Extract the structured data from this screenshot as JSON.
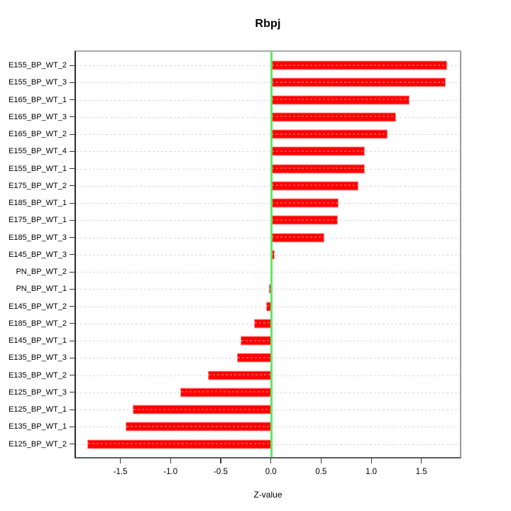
{
  "title": "Rbpj",
  "x_axis": {
    "label": "Z-value",
    "tick_values": [
      -1.5,
      -1.0,
      -0.5,
      0.0,
      0.5,
      1.0,
      1.5
    ],
    "tick_labels": [
      "-1.5",
      "-1.0",
      "-0.5",
      "0.0",
      "0.5",
      "1.0",
      "1.5"
    ]
  },
  "colors": {
    "bar_fill": "#ff0000",
    "bar_border": "#ff9595",
    "zero_line_green": "#63e763",
    "gridline_grey": "#d9d9d9"
  },
  "chart_data": {
    "type": "bar",
    "orientation": "horizontal",
    "title": "Rbpj",
    "xlabel": "Z-value",
    "ylabel": "",
    "xlim": [
      -1.96,
      1.89
    ],
    "grid": "dashed-horizontal-per-category",
    "zero_reference_line": 0.0,
    "legend": "none",
    "categories": [
      "E155_BP_WT_2",
      "E155_BP_WT_3",
      "E165_BP_WT_1",
      "E165_BP_WT_3",
      "E165_BP_WT_2",
      "E155_BP_WT_4",
      "E155_BP_WT_1",
      "E175_BP_WT_2",
      "E185_BP_WT_1",
      "E175_BP_WT_1",
      "E185_BP_WT_3",
      "E145_BP_WT_3",
      "PN_BP_WT_2",
      "PN_BP_WT_1",
      "E145_BP_WT_2",
      "E185_BP_WT_2",
      "E145_BP_WT_1",
      "E135_BP_WT_3",
      "E135_BP_WT_2",
      "E125_BP_WT_3",
      "E125_BP_WT_1",
      "E135_BP_WT_1",
      "E125_BP_WT_2"
    ],
    "values": [
      1.74,
      1.73,
      1.37,
      1.23,
      1.15,
      0.92,
      0.92,
      0.86,
      0.66,
      0.65,
      0.52,
      0.02,
      0.0,
      -0.02,
      -0.05,
      -0.17,
      -0.3,
      -0.34,
      -0.63,
      -0.9,
      -1.38,
      -1.45,
      -1.83
    ]
  }
}
